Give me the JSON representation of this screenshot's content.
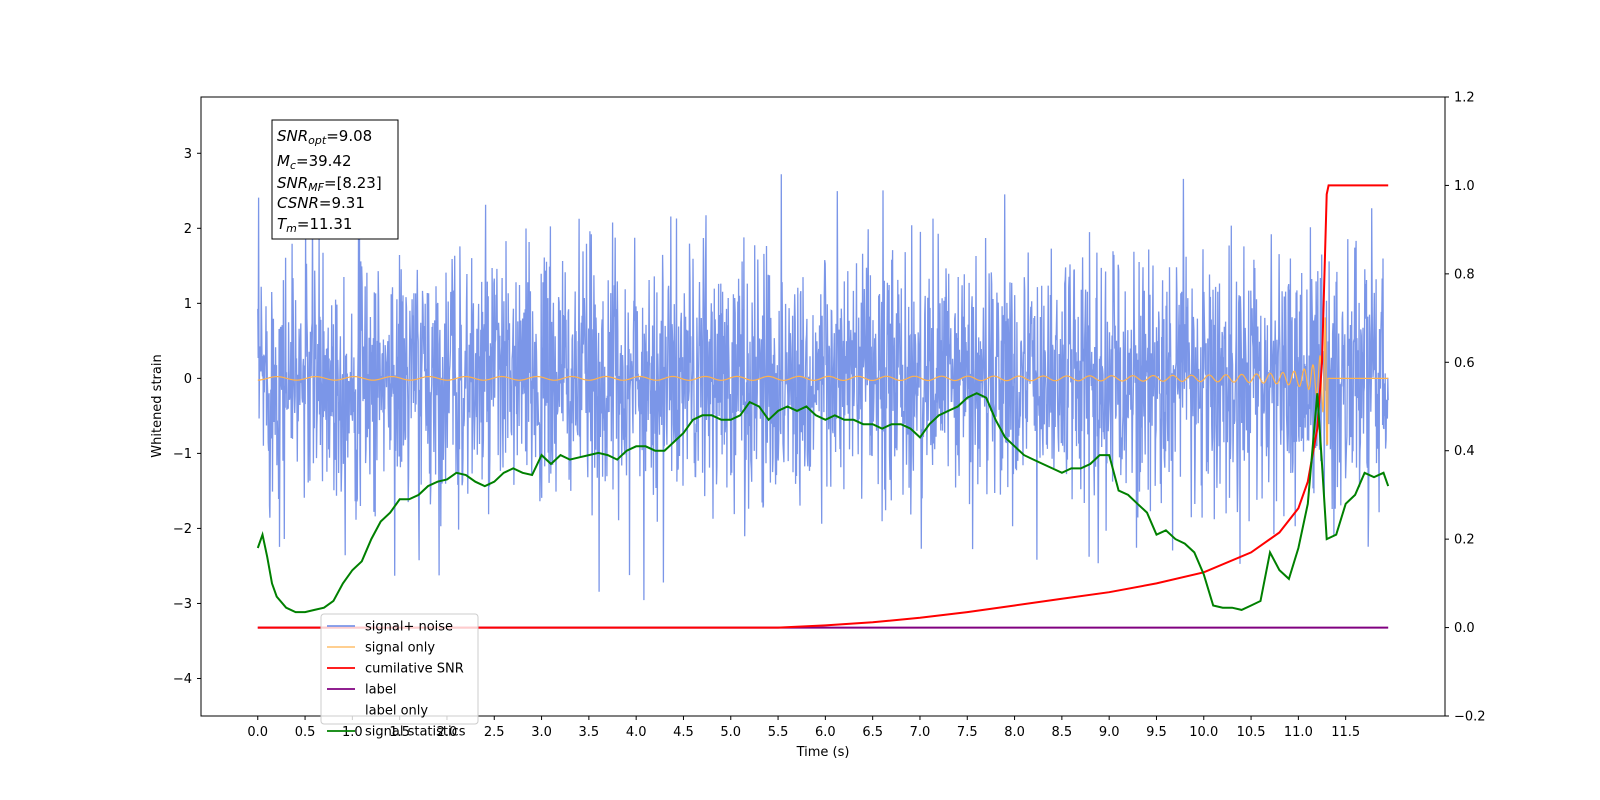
{
  "chart_data": {
    "type": "line",
    "xlabel": "Time (s)",
    "ylabel": "Whitened strain",
    "xlim": [
      -0.6,
      12.55
    ],
    "ylim": [
      -4.5,
      3.75
    ],
    "y2lim": [
      -0.2,
      1.2
    ],
    "xticks": [
      "0.0",
      "0.5",
      "1.0",
      "1.5",
      "2.0",
      "2.5",
      "3.0",
      "3.5",
      "4.0",
      "4.5",
      "5.0",
      "5.5",
      "6.0",
      "6.5",
      "7.0",
      "7.5",
      "8.0",
      "8.5",
      "9.0",
      "9.5",
      "10.0",
      "10.5",
      "11.0",
      "11.5"
    ],
    "yticks": [
      "−4",
      "−3",
      "−2",
      "−1",
      "0",
      "1",
      "2",
      "3"
    ],
    "y2ticks": [
      "−0.2",
      "0.0",
      "0.2",
      "0.4",
      "0.6",
      "0.8",
      "1.0",
      "1.2"
    ],
    "grid": false,
    "legend_position": "lower-left",
    "info_box": {
      "snr_opt": {
        "base": "SNR",
        "sub": "opt",
        "value": "=9.08"
      },
      "mc": {
        "base": "M",
        "sub": "c",
        "value": "=39.42"
      },
      "snr_mf": {
        "base": "SNR",
        "sub": "MF",
        "value": "=[8.23]"
      },
      "csnr": {
        "base": "CSNR",
        "value": "=9.31"
      },
      "tm": {
        "base": "T",
        "sub": "m",
        "value": "=11.31"
      }
    },
    "series": [
      {
        "name": "signal+ noise",
        "color": "#7b96e8",
        "axis": "left",
        "description_range": [
          -2.2,
          2.2
        ]
      },
      {
        "name": "signal only",
        "color": "#ffb24d",
        "axis": "left"
      },
      {
        "name": "cumilative SNR",
        "color": "#ff0000",
        "axis": "right",
        "x": [
          0.0,
          5.5,
          6.0,
          6.5,
          7.0,
          7.5,
          8.0,
          8.5,
          9.0,
          9.5,
          10.0,
          10.5,
          10.8,
          11.0,
          11.1,
          11.2,
          11.25,
          11.3,
          11.32,
          11.95
        ],
        "values": [
          0.0,
          0.0,
          0.005,
          0.012,
          0.022,
          0.035,
          0.05,
          0.065,
          0.08,
          0.1,
          0.125,
          0.17,
          0.215,
          0.27,
          0.33,
          0.45,
          0.6,
          0.98,
          1.0,
          1.0
        ]
      },
      {
        "name": "label",
        "color": "#800080",
        "axis": "right",
        "x": [
          0.0,
          11.95
        ],
        "values": [
          0.0,
          0.0
        ]
      },
      {
        "name": "label only",
        "color": "#ffffff",
        "axis": "right",
        "legend_only": true
      },
      {
        "name": "signal statistics",
        "color": "#008000",
        "axis": "right",
        "x": [
          0.0,
          0.05,
          0.1,
          0.15,
          0.2,
          0.3,
          0.4,
          0.5,
          0.6,
          0.7,
          0.8,
          0.9,
          1.0,
          1.1,
          1.2,
          1.3,
          1.4,
          1.5,
          1.6,
          1.7,
          1.8,
          1.9,
          2.0,
          2.1,
          2.2,
          2.3,
          2.4,
          2.5,
          2.6,
          2.7,
          2.8,
          2.9,
          3.0,
          3.1,
          3.2,
          3.3,
          3.4,
          3.5,
          3.6,
          3.7,
          3.8,
          3.9,
          4.0,
          4.1,
          4.2,
          4.3,
          4.4,
          4.5,
          4.6,
          4.7,
          4.8,
          4.9,
          5.0,
          5.1,
          5.2,
          5.3,
          5.4,
          5.5,
          5.6,
          5.7,
          5.8,
          5.9,
          6.0,
          6.1,
          6.2,
          6.3,
          6.4,
          6.5,
          6.6,
          6.7,
          6.8,
          6.9,
          7.0,
          7.1,
          7.2,
          7.3,
          7.4,
          7.5,
          7.6,
          7.7,
          7.8,
          7.9,
          8.0,
          8.1,
          8.2,
          8.3,
          8.4,
          8.5,
          8.6,
          8.7,
          8.8,
          8.9,
          9.0,
          9.1,
          9.2,
          9.3,
          9.4,
          9.5,
          9.6,
          9.7,
          9.8,
          9.9,
          10.0,
          10.1,
          10.2,
          10.3,
          10.4,
          10.5,
          10.6,
          10.7,
          10.8,
          10.9,
          11.0,
          11.1,
          11.2,
          11.25,
          11.3,
          11.4,
          11.5,
          11.6,
          11.7,
          11.8,
          11.9,
          11.95
        ],
        "values": [
          0.18,
          0.21,
          0.16,
          0.1,
          0.07,
          0.045,
          0.035,
          0.035,
          0.04,
          0.045,
          0.06,
          0.1,
          0.13,
          0.15,
          0.2,
          0.24,
          0.26,
          0.29,
          0.29,
          0.3,
          0.32,
          0.33,
          0.335,
          0.35,
          0.345,
          0.33,
          0.32,
          0.33,
          0.35,
          0.36,
          0.35,
          0.345,
          0.39,
          0.37,
          0.39,
          0.38,
          0.385,
          0.39,
          0.395,
          0.39,
          0.38,
          0.4,
          0.41,
          0.41,
          0.4,
          0.4,
          0.42,
          0.44,
          0.47,
          0.48,
          0.48,
          0.47,
          0.47,
          0.48,
          0.51,
          0.5,
          0.47,
          0.49,
          0.5,
          0.49,
          0.5,
          0.48,
          0.47,
          0.48,
          0.47,
          0.47,
          0.46,
          0.46,
          0.45,
          0.46,
          0.46,
          0.45,
          0.43,
          0.46,
          0.48,
          0.49,
          0.5,
          0.52,
          0.53,
          0.52,
          0.47,
          0.43,
          0.41,
          0.39,
          0.38,
          0.37,
          0.36,
          0.35,
          0.36,
          0.36,
          0.37,
          0.39,
          0.39,
          0.31,
          0.3,
          0.28,
          0.26,
          0.21,
          0.22,
          0.2,
          0.19,
          0.17,
          0.12,
          0.05,
          0.045,
          0.045,
          0.04,
          0.05,
          0.06,
          0.17,
          0.13,
          0.11,
          0.18,
          0.28,
          0.53,
          0.37,
          0.2,
          0.21,
          0.28,
          0.3,
          0.35,
          0.34,
          0.35,
          0.32
        ]
      }
    ]
  }
}
